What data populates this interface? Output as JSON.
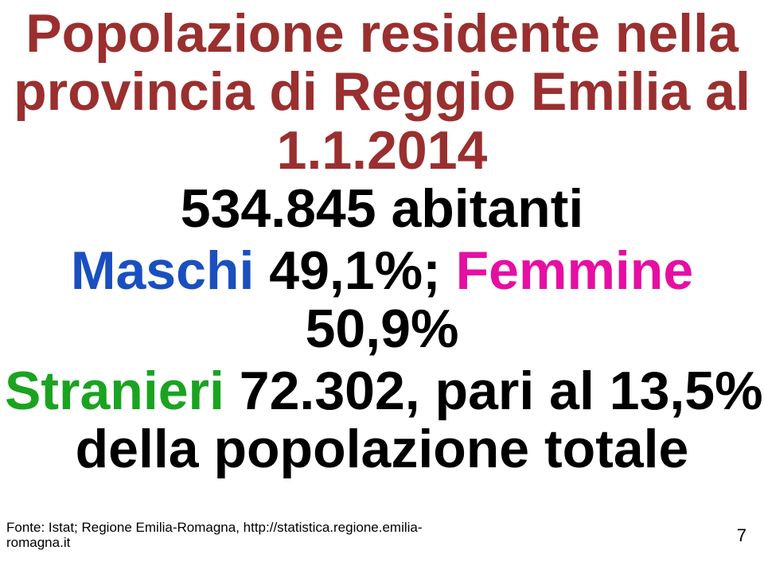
{
  "colors": {
    "title": "#9a2f2f",
    "black": "#000000",
    "blue_maschi": "#1a4fc1",
    "magenta_femmine": "#e60ea3",
    "green_stranieri": "#1aa321",
    "source_text": "#000000",
    "background": "#ffffff"
  },
  "title": {
    "line1": "Popolazione residente nella",
    "line2": "provincia di Reggio Emilia al",
    "date": "1.1.2014"
  },
  "abitanti": "534.845 abitanti",
  "gender_line": {
    "maschi_label": "Maschi",
    "maschi_value": " 49,1%; ",
    "femmine_label": "Femmine",
    "femmine_value": "50,9%"
  },
  "stranieri_line": {
    "stranieri_label": "Stranieri",
    "rest": " 72.302, pari al 13,5%"
  },
  "totale_line": "della popolazione totale",
  "source": {
    "line1": "Fonte: Istat; Regione Emilia-Romagna, http://statistica.regione.emilia-",
    "line2": "romagna.it"
  },
  "page_number": "7"
}
